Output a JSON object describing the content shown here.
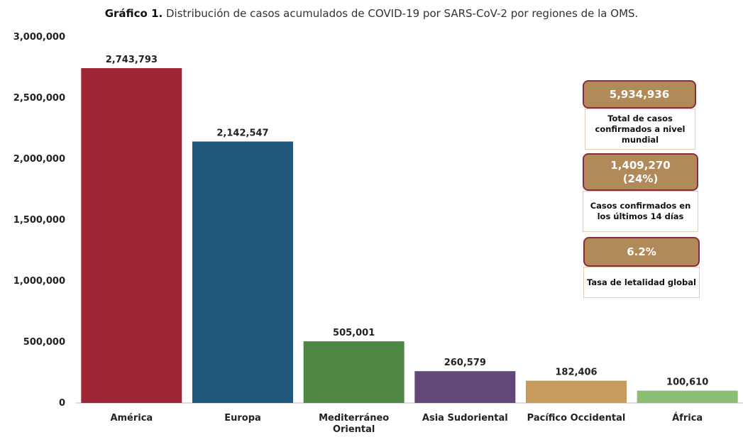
{
  "title_label": "Gráfico 1.",
  "title_text": "Distribución de casos acumulados de COVID-19 por SARS-CoV-2 por regiones de la OMS.",
  "chart_data": {
    "type": "bar",
    "title": "Gráfico 1. Distribución de casos acumulados de COVID-19 por SARS-CoV-2 por regiones de la OMS.",
    "categories": [
      "América",
      "Europa",
      "Mediterráneo Oriental",
      "Asia Sudoriental",
      "Pacífico Occidental",
      "África"
    ],
    "category_lines": [
      [
        "América"
      ],
      [
        "Europa"
      ],
      [
        "Mediterráneo",
        "Oriental"
      ],
      [
        "Asia Sudoriental"
      ],
      [
        "Pacífico Occidental"
      ],
      [
        "África"
      ]
    ],
    "values": [
      2743793,
      2142547,
      505001,
      260579,
      182406,
      100610
    ],
    "value_labels": [
      "2,743,793",
      "2,142,547",
      "505,001",
      "260,579",
      "182,406",
      "100,610"
    ],
    "colors": [
      "#9e2634",
      "#1d5779",
      "#4e8643",
      "#624879",
      "#c69b5c",
      "#8cbd74"
    ],
    "ylim": [
      0,
      3000000
    ],
    "yticks": [
      0,
      500000,
      1000000,
      1500000,
      2000000,
      2500000,
      3000000
    ],
    "ytick_labels": [
      "0",
      "500,000",
      "1,000,000",
      "1,500,000",
      "2,000,000",
      "2,500,000",
      "3,000,000"
    ],
    "grid": false,
    "xlabel": "",
    "ylabel": ""
  },
  "kpis": [
    {
      "value_lines": [
        "5,934,936"
      ],
      "desc": "Total de casos confirmados a nivel mundial"
    },
    {
      "value_lines": [
        "1,409,270",
        "(24%)"
      ],
      "desc": "Casos confirmados en los últimos 14 días"
    },
    {
      "value_lines": [
        "6.2%"
      ],
      "desc": "Tasa de letalidad global"
    }
  ]
}
